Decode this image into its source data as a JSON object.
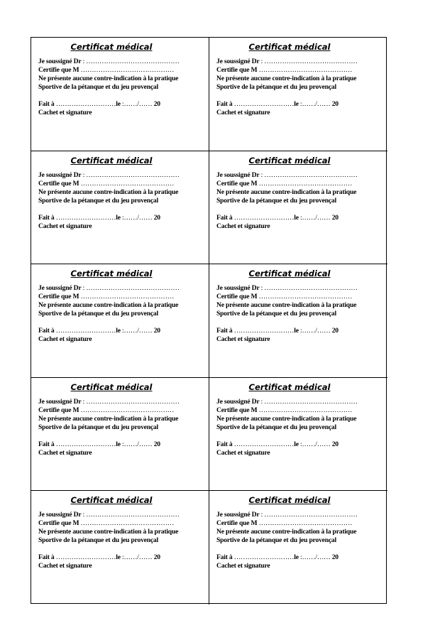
{
  "card_count": 10,
  "certificate": {
    "title": "Certificat médical",
    "doctor_label": "Je soussigné Dr",
    "doctor_dots": " : ……………………………………",
    "patient_label": "Certifie que M",
    "patient_dots": " ……………………………………",
    "line3": "Ne présente aucune contre-indication à la pratique",
    "line4": "Sportive de la pétanque et du jeu provençal",
    "place_label": "Fait à",
    "place_dots": " ………………………",
    "date_label": "le",
    "date_dots": " :……/……",
    "year": " 20",
    "signature_label": "Cachet et signature"
  }
}
